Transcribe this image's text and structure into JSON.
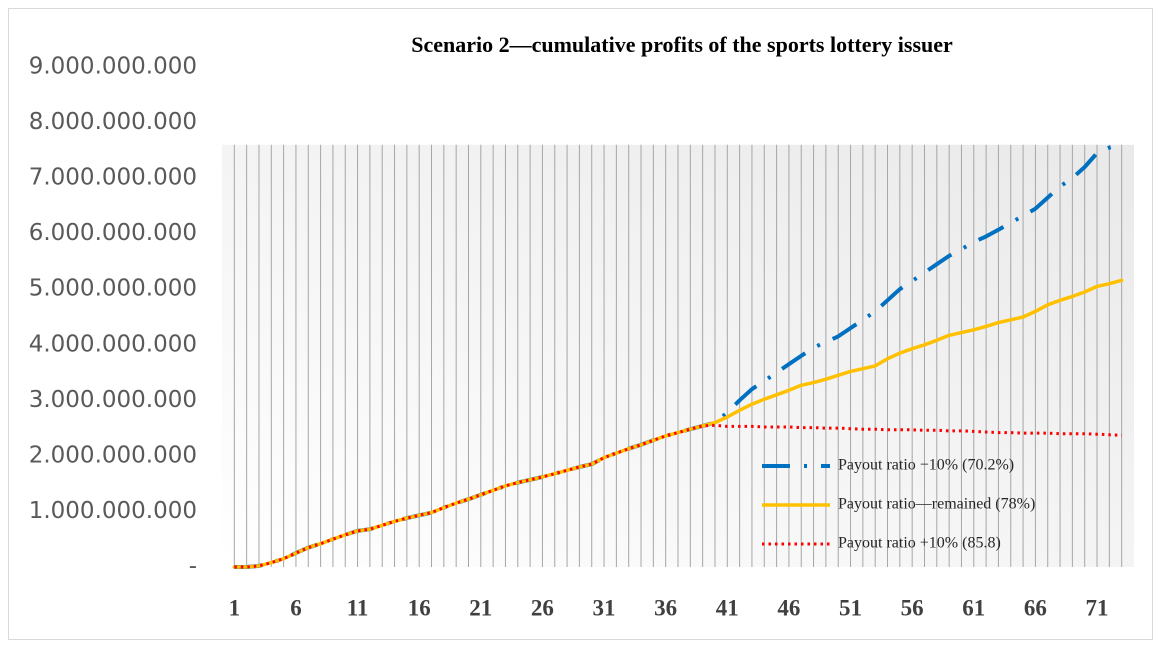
{
  "chart_data": {
    "type": "line",
    "title": "Scenario 2—cumulative profits of the sports lottery issuer",
    "x": [
      1,
      2,
      3,
      4,
      5,
      6,
      7,
      8,
      9,
      10,
      11,
      12,
      13,
      14,
      15,
      16,
      17,
      18,
      19,
      20,
      21,
      22,
      23,
      24,
      25,
      26,
      27,
      28,
      29,
      30,
      31,
      32,
      33,
      34,
      35,
      36,
      37,
      38,
      39,
      40,
      41,
      42,
      43,
      44,
      45,
      46,
      47,
      48,
      49,
      50,
      51,
      52,
      53,
      54,
      55,
      56,
      57,
      58,
      59,
      60,
      61,
      62,
      63,
      64,
      65,
      66,
      67,
      68,
      69,
      70,
      71,
      72,
      73
    ],
    "xlim": [
      0,
      74
    ],
    "xticks": [
      1,
      6,
      11,
      16,
      21,
      26,
      31,
      36,
      41,
      46,
      51,
      56,
      61,
      66,
      71
    ],
    "ylim": [
      0,
      9000000000
    ],
    "yticks": [
      {
        "value": 0,
        "label": "-"
      },
      {
        "value": 1000000000,
        "label": "1.000.000.000"
      },
      {
        "value": 2000000000,
        "label": "2.000.000.000"
      },
      {
        "value": 3000000000,
        "label": "3.000.000.000"
      },
      {
        "value": 4000000000,
        "label": "4.000.000.000"
      },
      {
        "value": 5000000000,
        "label": "5.000.000.000"
      },
      {
        "value": 6000000000,
        "label": "6.000.000.000"
      },
      {
        "value": 7000000000,
        "label": "7.000.000.000"
      },
      {
        "value": 8000000000,
        "label": "8.000.000.000"
      },
      {
        "value": 9000000000,
        "label": "9.000.000.000"
      }
    ],
    "legend": "lower right",
    "series": [
      {
        "name": "Payout ratio −10% (70.2%)",
        "color": "#0070c0",
        "values": [
          0,
          0,
          20000000,
          80000000,
          150000000,
          250000000,
          350000000,
          420000000,
          500000000,
          580000000,
          650000000,
          680000000,
          750000000,
          820000000,
          880000000,
          930000000,
          980000000,
          1070000000,
          1150000000,
          1220000000,
          1300000000,
          1380000000,
          1460000000,
          1520000000,
          1570000000,
          1620000000,
          1680000000,
          1740000000,
          1800000000,
          1850000000,
          1970000000,
          2050000000,
          2130000000,
          2200000000,
          2280000000,
          2360000000,
          2420000000,
          2480000000,
          2540000000,
          2600000000,
          2780000000,
          3000000000,
          3200000000,
          3350000000,
          3500000000,
          3650000000,
          3800000000,
          3950000000,
          4050000000,
          4150000000,
          4300000000,
          4450000000,
          4600000000,
          4800000000,
          5000000000,
          5150000000,
          5300000000,
          5450000000,
          5600000000,
          5720000000,
          5850000000,
          5950000000,
          6070000000,
          6200000000,
          6320000000,
          6450000000,
          6650000000,
          6850000000,
          7000000000,
          7200000000,
          7450000000,
          7550000000,
          7600000000
        ]
      },
      {
        "name": "Payout ratio—remained (78%)",
        "color": "#ffc000",
        "values": [
          0,
          0,
          20000000,
          80000000,
          150000000,
          250000000,
          350000000,
          420000000,
          500000000,
          580000000,
          650000000,
          680000000,
          750000000,
          820000000,
          880000000,
          930000000,
          980000000,
          1070000000,
          1150000000,
          1220000000,
          1300000000,
          1380000000,
          1460000000,
          1520000000,
          1570000000,
          1620000000,
          1680000000,
          1740000000,
          1800000000,
          1850000000,
          1970000000,
          2050000000,
          2130000000,
          2200000000,
          2280000000,
          2360000000,
          2420000000,
          2480000000,
          2540000000,
          2600000000,
          2700000000,
          2820000000,
          2930000000,
          3020000000,
          3100000000,
          3180000000,
          3270000000,
          3320000000,
          3380000000,
          3450000000,
          3520000000,
          3570000000,
          3620000000,
          3750000000,
          3850000000,
          3930000000,
          4000000000,
          4080000000,
          4170000000,
          4220000000,
          4270000000,
          4330000000,
          4400000000,
          4450000000,
          4500000000,
          4600000000,
          4720000000,
          4800000000,
          4870000000,
          4950000000,
          5050000000,
          5100000000,
          5160000000
        ]
      },
      {
        "name": "Payout ratio +10% (85.8)",
        "color": "#ff0000",
        "values": [
          0,
          0,
          20000000,
          80000000,
          150000000,
          250000000,
          350000000,
          420000000,
          500000000,
          580000000,
          650000000,
          680000000,
          750000000,
          820000000,
          880000000,
          930000000,
          980000000,
          1070000000,
          1150000000,
          1220000000,
          1300000000,
          1380000000,
          1460000000,
          1520000000,
          1570000000,
          1620000000,
          1680000000,
          1740000000,
          1800000000,
          1850000000,
          1970000000,
          2050000000,
          2130000000,
          2200000000,
          2280000000,
          2360000000,
          2420000000,
          2480000000,
          2540000000,
          2550000000,
          2530000000,
          2530000000,
          2530000000,
          2520000000,
          2520000000,
          2520000000,
          2510000000,
          2510000000,
          2500000000,
          2500000000,
          2490000000,
          2480000000,
          2480000000,
          2470000000,
          2470000000,
          2470000000,
          2460000000,
          2460000000,
          2450000000,
          2450000000,
          2440000000,
          2430000000,
          2420000000,
          2420000000,
          2410000000,
          2410000000,
          2410000000,
          2400000000,
          2400000000,
          2400000000,
          2390000000,
          2380000000,
          2370000000
        ]
      }
    ]
  }
}
